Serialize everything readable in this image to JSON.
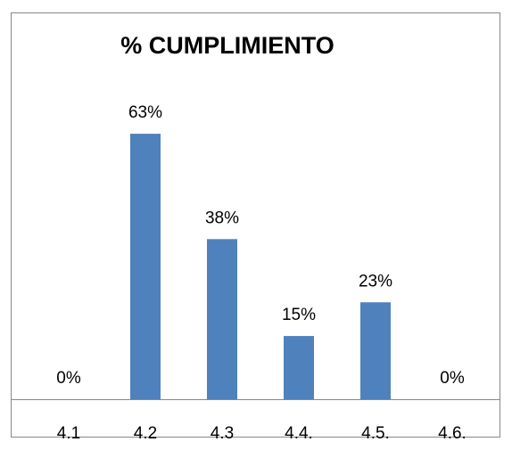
{
  "chart_data": {
    "type": "bar",
    "title": "% CUMPLIMIENTO",
    "categories": [
      "4.1",
      "4.2",
      "4.3",
      "4.4.",
      "4.5.",
      "4.6."
    ],
    "values": [
      0,
      63,
      38,
      15,
      23,
      0
    ],
    "value_labels": [
      "0%",
      "63%",
      "38%",
      "15%",
      "23%",
      "0%"
    ],
    "color": "#4f81bd",
    "ylim": [
      0,
      70
    ]
  }
}
